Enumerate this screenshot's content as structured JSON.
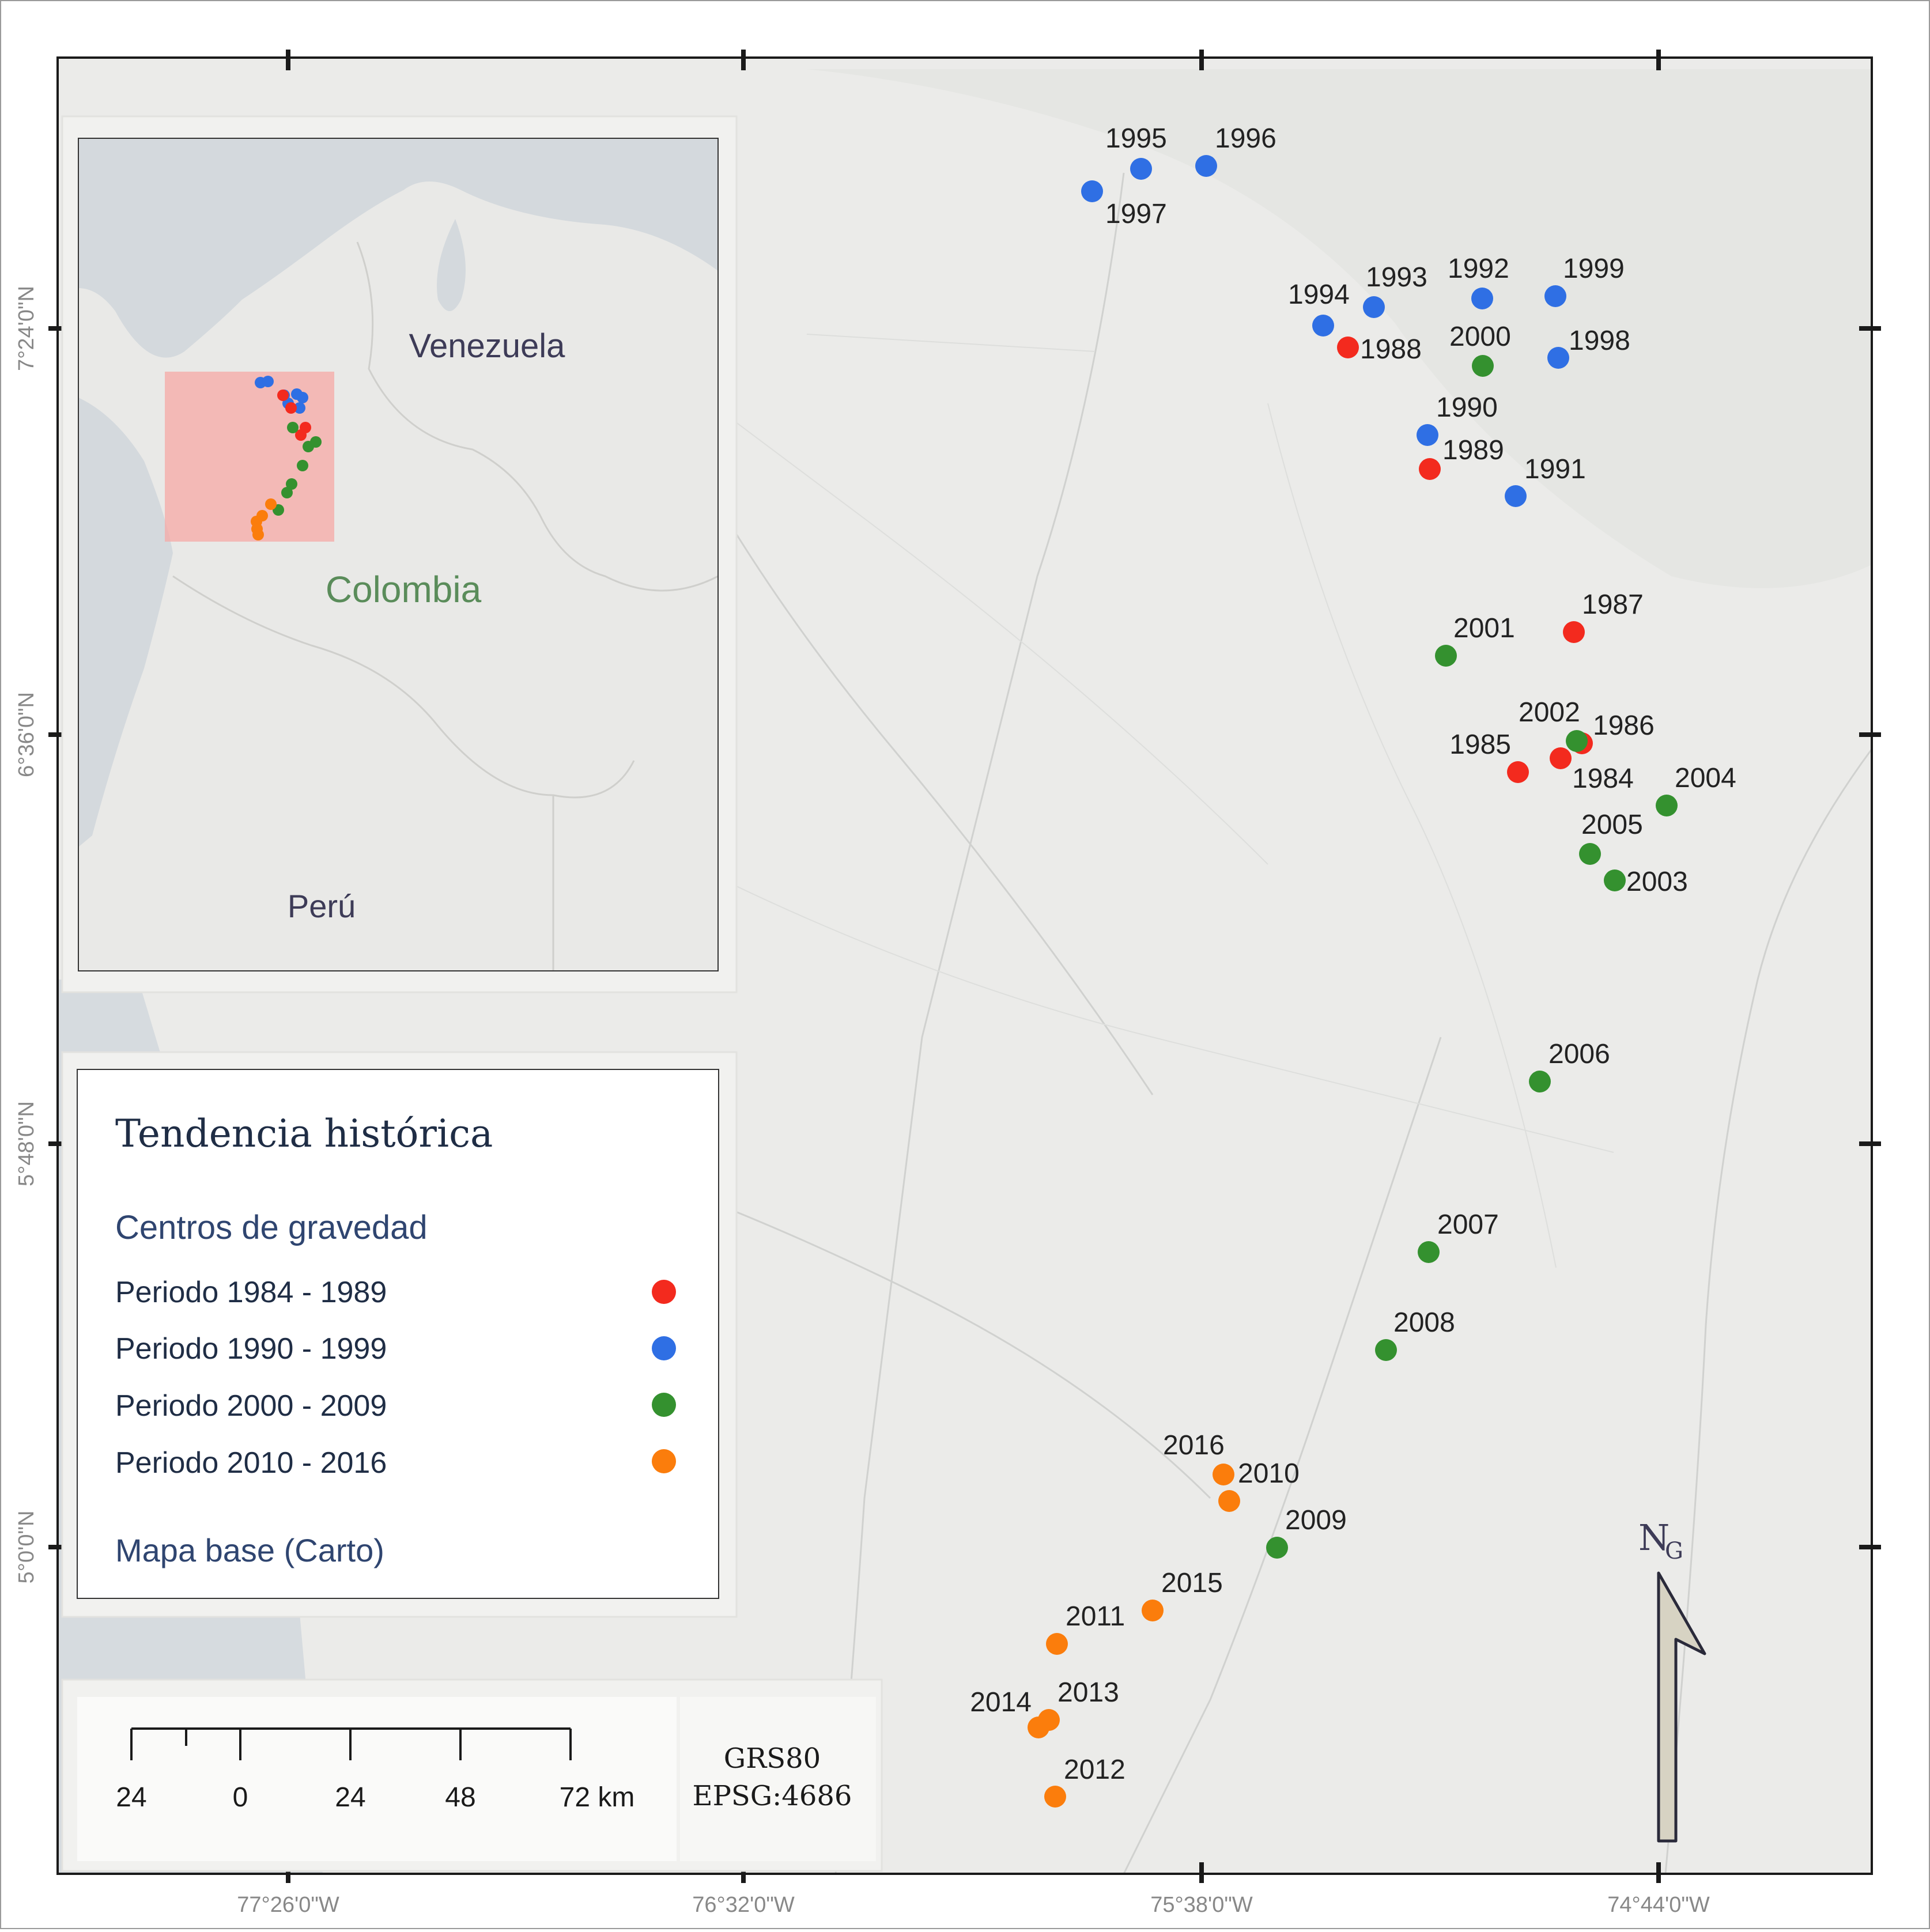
{
  "map": {
    "coord_labels": {
      "bottom": [
        "77°26'0\"W",
        "76°32'0\"W",
        "75°38'0\"W",
        "74°44'0\"W"
      ],
      "left": [
        "7°24'0\"N",
        "6°36'0\"N",
        "5°48'0\"N",
        "5°0'0\"N"
      ]
    },
    "points": [
      {
        "year": "1984",
        "period": "p1984"
      },
      {
        "year": "1985",
        "period": "p1984"
      },
      {
        "year": "1986",
        "period": "p1984"
      },
      {
        "year": "1987",
        "period": "p1984"
      },
      {
        "year": "1988",
        "period": "p1984"
      },
      {
        "year": "1989",
        "period": "p1984"
      },
      {
        "year": "1990",
        "period": "p1990"
      },
      {
        "year": "1991",
        "period": "p1990"
      },
      {
        "year": "1992",
        "period": "p1990"
      },
      {
        "year": "1993",
        "period": "p1990"
      },
      {
        "year": "1994",
        "period": "p1990"
      },
      {
        "year": "1995",
        "period": "p1990"
      },
      {
        "year": "1996",
        "period": "p1990"
      },
      {
        "year": "1997",
        "period": "p1990"
      },
      {
        "year": "1998",
        "period": "p1990"
      },
      {
        "year": "1999",
        "period": "p1990"
      },
      {
        "year": "2000",
        "period": "p2000"
      },
      {
        "year": "2001",
        "period": "p2000"
      },
      {
        "year": "2002",
        "period": "p2000"
      },
      {
        "year": "2003",
        "period": "p2000"
      },
      {
        "year": "2004",
        "period": "p2000"
      },
      {
        "year": "2005",
        "period": "p2000"
      },
      {
        "year": "2006",
        "period": "p2000"
      },
      {
        "year": "2007",
        "period": "p2000"
      },
      {
        "year": "2008",
        "period": "p2000"
      },
      {
        "year": "2009",
        "period": "p2000"
      },
      {
        "year": "2010",
        "period": "p2010"
      },
      {
        "year": "2011",
        "period": "p2010"
      },
      {
        "year": "2012",
        "period": "p2010"
      },
      {
        "year": "2013",
        "period": "p2010"
      },
      {
        "year": "2014",
        "period": "p2010"
      },
      {
        "year": "2015",
        "period": "p2010"
      },
      {
        "year": "2016",
        "period": "p2010"
      }
    ]
  },
  "colors": {
    "p1984": "#f32a1e",
    "p1990": "#2f6fe4",
    "p2000": "#34912f",
    "p2010": "#fb7d0c",
    "basemap_land": "#ebebe9",
    "water": "#d4d9dd",
    "inset_highlight": "#f5a8a6"
  },
  "inset": {
    "country_main": "Colombia",
    "country_north": "Venezuela",
    "country_south": "Perú"
  },
  "legend": {
    "title": "Tendencia histórica",
    "subtitle": "Centros de gravedad",
    "items": [
      {
        "label": "Periodo 1984 - 1989",
        "period": "p1984"
      },
      {
        "label": "Periodo 1990 - 1999",
        "period": "p1990"
      },
      {
        "label": "Periodo 2000 - 2009",
        "period": "p2000"
      },
      {
        "label": "Periodo 2010 - 2016",
        "period": "p2010"
      }
    ],
    "basemap": "Mapa base (Carto)"
  },
  "scalebar": {
    "labels": [
      "24",
      "0",
      "24",
      "48",
      "72 km"
    ]
  },
  "crs": {
    "datum": "GRS80",
    "epsg": "EPSG:4686"
  },
  "north_arrow": {
    "letter": "N",
    "subscript": "G",
    "icon": "north-arrow-icon"
  }
}
